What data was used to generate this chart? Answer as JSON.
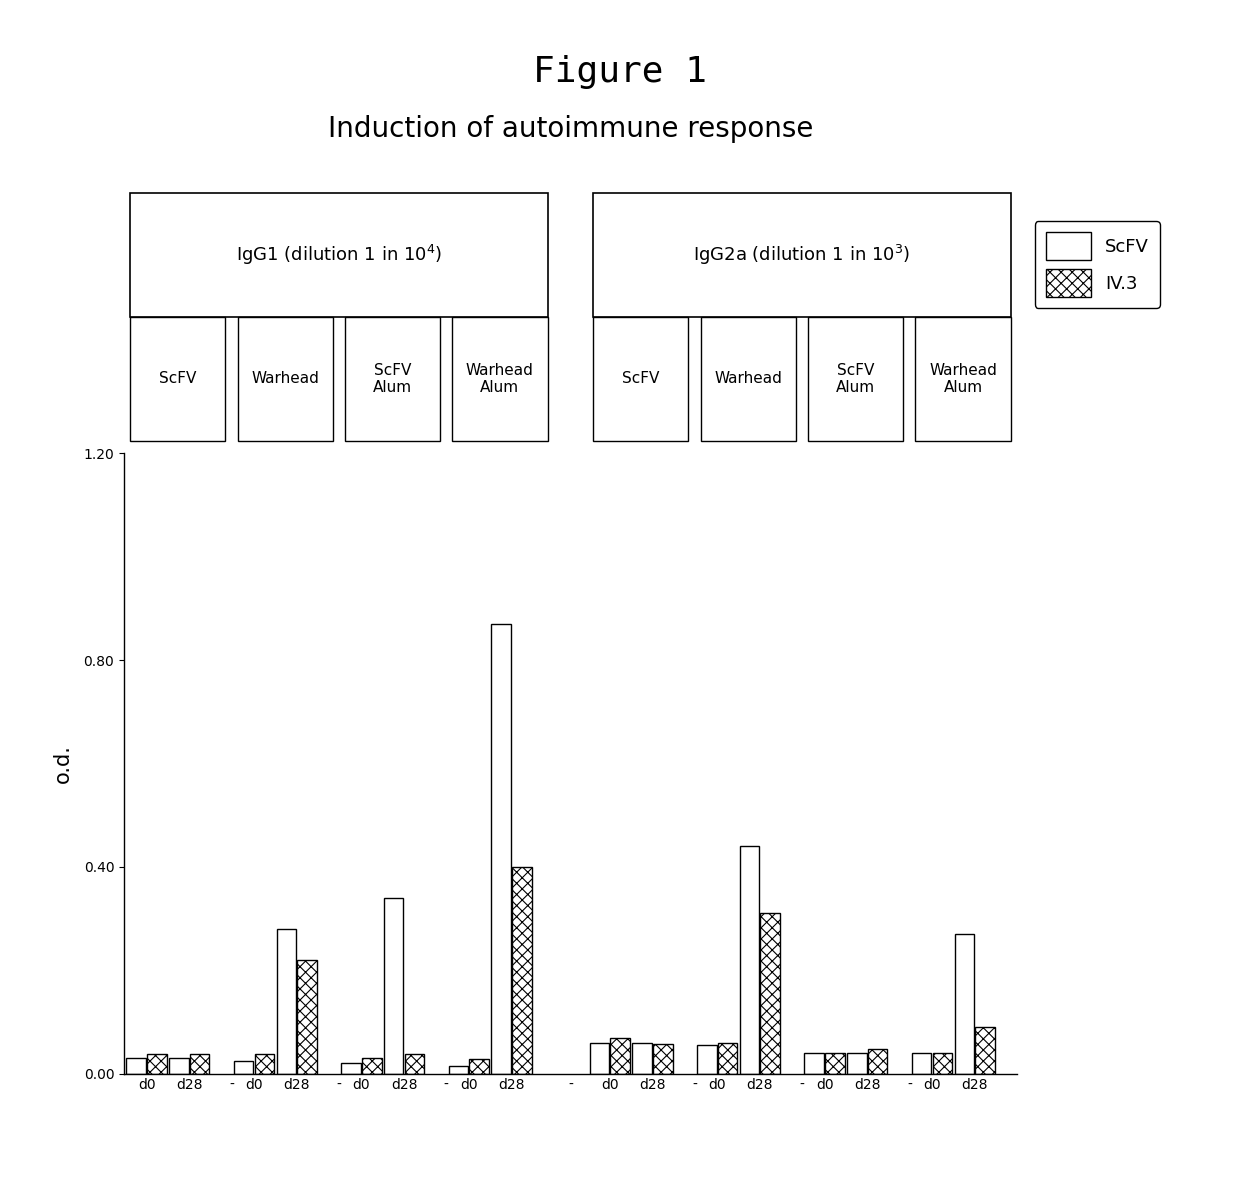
{
  "title_figure": "Figure 1",
  "title_chart": "Induction of autoimmune response",
  "ylabel": "o.d.",
  "ylim": [
    0.0,
    1.2
  ],
  "yticks": [
    0.0,
    0.4,
    0.8,
    1.2
  ],
  "section_labels_raw": [
    "IgG1 (dilution 1 in 10",
    "IgG2a (dilution 1 in 10"
  ],
  "section_exponents": [
    "4",
    "3"
  ],
  "group_labels": [
    "ScFV",
    "Warhead",
    "ScFV\nAlum",
    "Warhead\nAlum",
    "ScFV",
    "Warhead",
    "ScFV\nAlum",
    "Warhead\nAlum"
  ],
  "legend_labels": [
    "ScFV",
    "IV.3"
  ],
  "bar_width": 0.32,
  "bar_data": {
    "ScFV_d0": [
      0.03,
      0.025,
      0.02,
      0.015,
      0.06,
      0.055,
      0.04,
      0.04
    ],
    "ScFV_d28": [
      0.03,
      0.28,
      0.34,
      0.87,
      0.06,
      0.44,
      0.04,
      0.27
    ],
    "IV3_d0": [
      0.038,
      0.038,
      0.03,
      0.028,
      0.07,
      0.06,
      0.04,
      0.04
    ],
    "IV3_d28": [
      0.038,
      0.22,
      0.038,
      0.4,
      0.058,
      0.31,
      0.048,
      0.09
    ]
  },
  "color_scfv": "#ffffff",
  "edge_color": "#000000",
  "background_color": "#ffffff",
  "hatch_iv3": "xxx"
}
